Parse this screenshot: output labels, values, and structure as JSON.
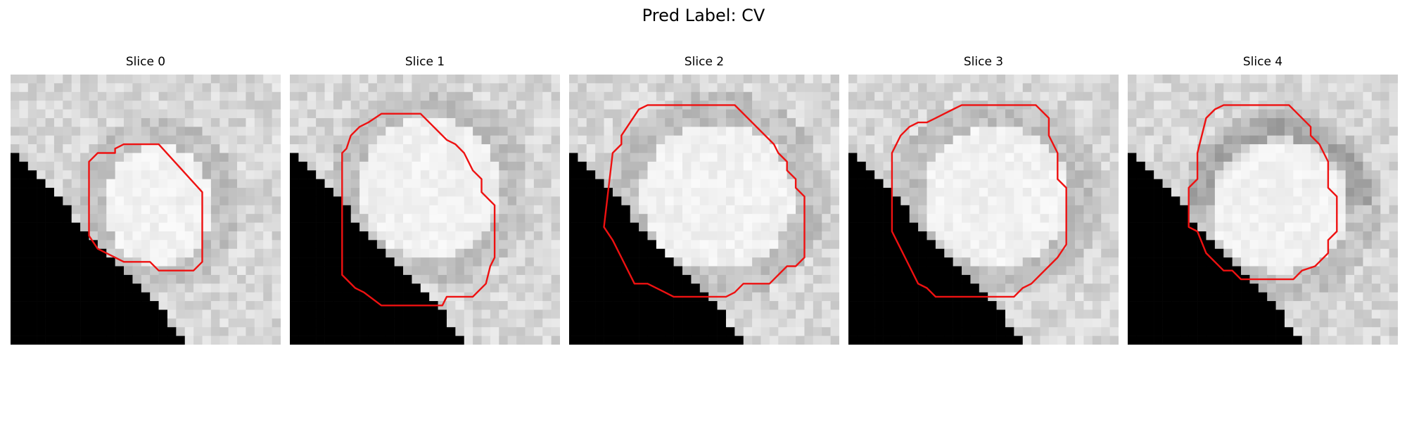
{
  "figure": {
    "title": "Pred Label: CV"
  },
  "slices": [
    {
      "title": "Slice 0"
    },
    {
      "title": "Slice 1"
    },
    {
      "title": "Slice 2"
    },
    {
      "title": "Slice 3"
    },
    {
      "title": "Slice 4"
    }
  ],
  "colors": {
    "contour": "#ee1111",
    "background_mask": "#000000"
  }
}
